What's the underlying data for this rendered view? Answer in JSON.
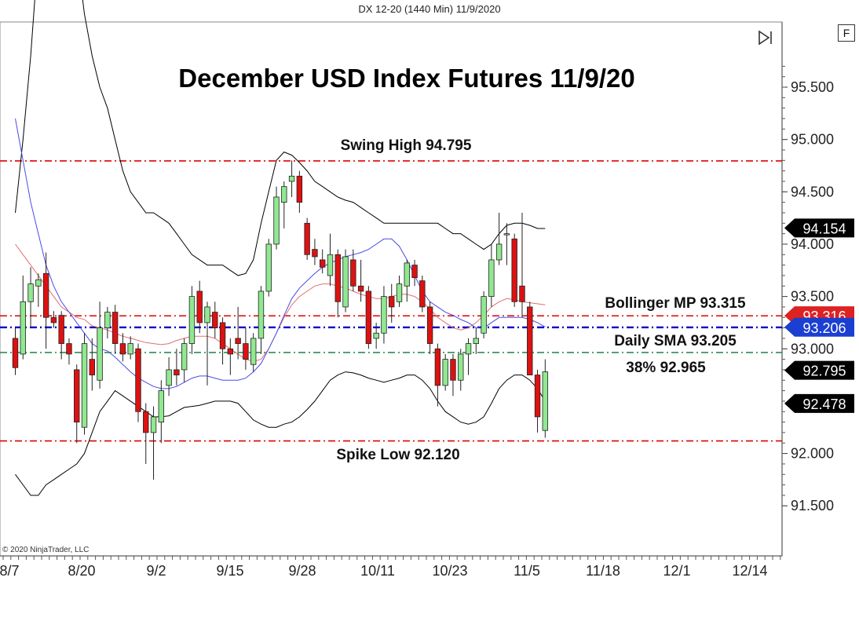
{
  "header": {
    "instrument_label": "DX 12-20 (1440 Min)  11/9/2020"
  },
  "chart_data": {
    "type": "candlestick",
    "title": "December USD Index Futures 11/9/20",
    "x_tick_labels": [
      "8/7",
      "8/20",
      "9/2",
      "9/15",
      "9/28",
      "10/11",
      "10/23",
      "11/5",
      "11/18",
      "12/1",
      "12/14"
    ],
    "y_tick_labels": [
      "95.500",
      "95.000",
      "94.500",
      "94.000",
      "93.500",
      "93.000",
      "92.000",
      "91.500"
    ],
    "ylim": [
      91.2,
      95.8
    ],
    "grid": false,
    "candles": [
      {
        "o": 93.1,
        "h": 93.2,
        "l": 92.75,
        "c": 92.82
      },
      {
        "o": 92.95,
        "h": 93.7,
        "l": 92.9,
        "c": 93.45
      },
      {
        "o": 93.45,
        "h": 93.78,
        "l": 93.2,
        "c": 93.62
      },
      {
        "o": 93.6,
        "h": 93.72,
        "l": 93.4,
        "c": 93.66
      },
      {
        "o": 93.72,
        "h": 93.92,
        "l": 93.0,
        "c": 93.3
      },
      {
        "o": 93.3,
        "h": 93.36,
        "l": 93.2,
        "c": 93.25
      },
      {
        "o": 93.32,
        "h": 93.36,
        "l": 92.9,
        "c": 93.05
      },
      {
        "o": 93.05,
        "h": 93.1,
        "l": 92.85,
        "c": 92.95
      },
      {
        "o": 92.8,
        "h": 92.85,
        "l": 92.1,
        "c": 92.3
      },
      {
        "o": 92.25,
        "h": 93.15,
        "l": 92.18,
        "c": 93.05
      },
      {
        "o": 92.9,
        "h": 93.1,
        "l": 92.6,
        "c": 92.75
      },
      {
        "o": 92.7,
        "h": 93.45,
        "l": 92.62,
        "c": 93.2
      },
      {
        "o": 93.2,
        "h": 93.4,
        "l": 93.1,
        "c": 93.35
      },
      {
        "o": 93.35,
        "h": 93.42,
        "l": 92.95,
        "c": 93.05
      },
      {
        "o": 93.05,
        "h": 93.15,
        "l": 92.88,
        "c": 92.95
      },
      {
        "o": 92.95,
        "h": 93.12,
        "l": 92.9,
        "c": 93.05
      },
      {
        "o": 93.0,
        "h": 93.05,
        "l": 92.3,
        "c": 92.4
      },
      {
        "o": 92.4,
        "h": 92.48,
        "l": 91.9,
        "c": 92.2
      },
      {
        "o": 92.2,
        "h": 92.45,
        "l": 91.75,
        "c": 92.35
      },
      {
        "o": 92.3,
        "h": 92.7,
        "l": 92.1,
        "c": 92.6
      },
      {
        "o": 92.65,
        "h": 92.92,
        "l": 92.55,
        "c": 92.8
      },
      {
        "o": 92.8,
        "h": 93.0,
        "l": 92.65,
        "c": 92.75
      },
      {
        "o": 92.8,
        "h": 93.1,
        "l": 92.68,
        "c": 93.05
      },
      {
        "o": 93.05,
        "h": 93.6,
        "l": 92.95,
        "c": 93.5
      },
      {
        "o": 93.55,
        "h": 93.65,
        "l": 93.15,
        "c": 93.25
      },
      {
        "o": 93.25,
        "h": 93.45,
        "l": 92.65,
        "c": 93.4
      },
      {
        "o": 93.35,
        "h": 93.45,
        "l": 93.1,
        "c": 93.2
      },
      {
        "o": 93.25,
        "h": 93.3,
        "l": 92.85,
        "c": 93.0
      },
      {
        "o": 93.0,
        "h": 93.1,
        "l": 92.75,
        "c": 92.95
      },
      {
        "o": 93.1,
        "h": 93.4,
        "l": 92.9,
        "c": 93.05
      },
      {
        "o": 93.05,
        "h": 93.2,
        "l": 92.8,
        "c": 92.9
      },
      {
        "o": 92.85,
        "h": 93.15,
        "l": 92.78,
        "c": 93.1
      },
      {
        "o": 93.1,
        "h": 93.6,
        "l": 92.95,
        "c": 93.55
      },
      {
        "o": 93.55,
        "h": 94.05,
        "l": 93.5,
        "c": 94.0
      },
      {
        "o": 94.0,
        "h": 94.55,
        "l": 93.95,
        "c": 94.45
      },
      {
        "o": 94.4,
        "h": 94.6,
        "l": 94.15,
        "c": 94.55
      },
      {
        "o": 94.6,
        "h": 94.8,
        "l": 94.45,
        "c": 94.65
      },
      {
        "o": 94.65,
        "h": 94.7,
        "l": 94.3,
        "c": 94.4
      },
      {
        "o": 94.2,
        "h": 94.25,
        "l": 93.85,
        "c": 93.9
      },
      {
        "o": 93.95,
        "h": 94.05,
        "l": 93.8,
        "c": 93.88
      },
      {
        "o": 93.85,
        "h": 93.95,
        "l": 93.72,
        "c": 93.78
      },
      {
        "o": 93.7,
        "h": 94.1,
        "l": 93.6,
        "c": 93.9
      },
      {
        "o": 93.9,
        "h": 93.95,
        "l": 93.3,
        "c": 93.45
      },
      {
        "o": 93.4,
        "h": 93.95,
        "l": 93.35,
        "c": 93.88
      },
      {
        "o": 93.85,
        "h": 93.95,
        "l": 93.55,
        "c": 93.6
      },
      {
        "o": 93.6,
        "h": 93.85,
        "l": 93.45,
        "c": 93.55
      },
      {
        "o": 93.55,
        "h": 93.6,
        "l": 93.0,
        "c": 93.05
      },
      {
        "o": 93.1,
        "h": 93.25,
        "l": 93.0,
        "c": 93.15
      },
      {
        "o": 93.15,
        "h": 93.6,
        "l": 93.05,
        "c": 93.5
      },
      {
        "o": 93.5,
        "h": 93.62,
        "l": 93.25,
        "c": 93.4
      },
      {
        "o": 93.45,
        "h": 93.7,
        "l": 93.4,
        "c": 93.62
      },
      {
        "o": 93.6,
        "h": 93.85,
        "l": 93.45,
        "c": 93.82
      },
      {
        "o": 93.8,
        "h": 93.85,
        "l": 93.6,
        "c": 93.68
      },
      {
        "o": 93.65,
        "h": 93.7,
        "l": 93.35,
        "c": 93.4
      },
      {
        "o": 93.4,
        "h": 93.45,
        "l": 92.95,
        "c": 93.05
      },
      {
        "o": 93.0,
        "h": 93.05,
        "l": 92.45,
        "c": 92.65
      },
      {
        "o": 92.65,
        "h": 92.95,
        "l": 92.6,
        "c": 92.9
      },
      {
        "o": 92.9,
        "h": 92.95,
        "l": 92.55,
        "c": 92.7
      },
      {
        "o": 92.7,
        "h": 93.0,
        "l": 92.6,
        "c": 92.95
      },
      {
        "o": 92.95,
        "h": 93.1,
        "l": 92.75,
        "c": 93.05
      },
      {
        "o": 93.05,
        "h": 93.2,
        "l": 92.95,
        "c": 93.1
      },
      {
        "o": 93.15,
        "h": 93.55,
        "l": 93.1,
        "c": 93.5
      },
      {
        "o": 93.5,
        "h": 94.0,
        "l": 93.4,
        "c": 93.85
      },
      {
        "o": 93.85,
        "h": 94.3,
        "l": 93.8,
        "c": 94.0
      },
      {
        "o": 94.1,
        "h": 94.2,
        "l": 93.8,
        "c": 94.1
      },
      {
        "o": 94.05,
        "h": 94.1,
        "l": 93.4,
        "c": 93.45
      },
      {
        "o": 93.6,
        "h": 94.3,
        "l": 93.3,
        "c": 93.45
      },
      {
        "o": 93.4,
        "h": 93.45,
        "l": 92.75,
        "c": 92.75
      },
      {
        "o": 92.75,
        "h": 92.8,
        "l": 92.2,
        "c": 92.35
      },
      {
        "o": 92.22,
        "h": 92.9,
        "l": 92.15,
        "c": 92.78
      }
    ],
    "bollinger_upper": [
      94.3,
      95.0,
      95.8,
      96.8,
      97.8,
      98.2,
      97.6,
      97.0,
      96.8,
      96.2,
      95.8,
      95.5,
      95.3,
      95.0,
      94.7,
      94.5,
      94.4,
      94.3,
      94.3,
      94.25,
      94.2,
      94.1,
      94.0,
      93.9,
      93.85,
      93.8,
      93.8,
      93.8,
      93.75,
      93.7,
      93.72,
      93.85,
      94.2,
      94.5,
      94.8,
      94.88,
      94.85,
      94.78,
      94.7,
      94.6,
      94.55,
      94.5,
      94.45,
      94.42,
      94.4,
      94.35,
      94.3,
      94.25,
      94.2,
      94.2,
      94.2,
      94.2,
      94.2,
      94.2,
      94.2,
      94.2,
      94.15,
      94.1,
      94.1,
      94.05,
      94.0,
      93.95,
      94.0,
      94.1,
      94.18,
      94.2,
      94.2,
      94.18,
      94.15,
      94.15
    ],
    "bollinger_middle": [
      94.0,
      93.9,
      93.8,
      93.7,
      93.6,
      93.5,
      93.4,
      93.35,
      93.3,
      93.28,
      93.22,
      93.2,
      93.18,
      93.15,
      93.12,
      93.1,
      93.08,
      93.06,
      93.05,
      93.04,
      93.05,
      93.08,
      93.1,
      93.12,
      93.12,
      93.12,
      93.1,
      93.05,
      93.0,
      92.95,
      92.9,
      92.88,
      92.9,
      93.0,
      93.15,
      93.3,
      93.42,
      93.5,
      93.55,
      93.6,
      93.62,
      93.62,
      93.6,
      93.58,
      93.55,
      93.52,
      93.5,
      93.48,
      93.48,
      93.5,
      93.52,
      93.52,
      93.5,
      93.45,
      93.38,
      93.3,
      93.25,
      93.2,
      93.18,
      93.2,
      93.25,
      93.32,
      93.4,
      93.45,
      93.48,
      93.47,
      93.45,
      93.44,
      93.43,
      93.42
    ],
    "bollinger_lower": [
      91.8,
      91.7,
      91.6,
      91.6,
      91.7,
      91.75,
      91.8,
      91.85,
      91.9,
      92.0,
      92.2,
      92.4,
      92.5,
      92.6,
      92.55,
      92.5,
      92.45,
      92.4,
      92.35,
      92.35,
      92.36,
      92.4,
      92.44,
      92.45,
      92.46,
      92.48,
      92.5,
      92.5,
      92.5,
      92.48,
      92.4,
      92.32,
      92.28,
      92.25,
      92.25,
      92.28,
      92.3,
      92.35,
      92.42,
      92.5,
      92.6,
      92.7,
      92.75,
      92.78,
      92.77,
      92.75,
      92.72,
      92.7,
      92.68,
      92.7,
      92.72,
      92.75,
      92.75,
      92.7,
      92.62,
      92.5,
      92.4,
      92.35,
      92.3,
      92.28,
      92.3,
      92.35,
      92.48,
      92.62,
      92.7,
      92.75,
      92.75,
      92.7,
      92.62,
      92.5
    ],
    "daily_sma": [
      95.2,
      94.8,
      94.4,
      94.1,
      93.8,
      93.6,
      93.45,
      93.35,
      93.25,
      93.15,
      93.05,
      93.0,
      92.98,
      92.92,
      92.85,
      92.78,
      92.72,
      92.68,
      92.64,
      92.62,
      92.62,
      92.64,
      92.68,
      92.72,
      92.74,
      92.74,
      92.72,
      92.7,
      92.7,
      92.7,
      92.72,
      92.78,
      92.86,
      93.0,
      93.15,
      93.32,
      93.48,
      93.58,
      93.65,
      93.72,
      93.78,
      93.82,
      93.85,
      93.88,
      93.9,
      93.92,
      93.95,
      94.0,
      94.05,
      94.05,
      93.98,
      93.85,
      93.7,
      93.55,
      93.45,
      93.4,
      93.35,
      93.32,
      93.28,
      93.25,
      93.2,
      93.2,
      93.25,
      93.3,
      93.3,
      93.3,
      93.3,
      93.28,
      93.25,
      93.21
    ],
    "levels": [
      {
        "label": "Swing High 94.795",
        "value": 94.795,
        "color": "#e00000"
      },
      {
        "label": "Bollinger MP 93.315",
        "value": 93.315,
        "color": "#e00000"
      },
      {
        "label": "Daily SMA 93.205",
        "value": 93.205,
        "color": "#0000cc"
      },
      {
        "label": "38% 92.965",
        "value": 92.965,
        "color": "#2e8b57"
      },
      {
        "label": "Spike Low 92.120",
        "value": 92.12,
        "color": "#e00000"
      }
    ],
    "price_tags": [
      {
        "text": "94.154",
        "value": 94.154,
        "bg": "#000000",
        "fg": "#ffffff"
      },
      {
        "text": "93.316",
        "value": 93.316,
        "bg": "#dd2222",
        "fg": "#ffffff"
      },
      {
        "text": "93.206",
        "value": 93.206,
        "bg": "#1a3fd1",
        "fg": "#ffffff"
      },
      {
        "text": "92.795",
        "value": 92.795,
        "bg": "#000000",
        "fg": "#ffffff"
      },
      {
        "text": "92.478",
        "value": 92.478,
        "bg": "#000000",
        "fg": "#ffffff"
      }
    ],
    "colors": {
      "up_candle": "#90e890",
      "down_candle": "#dd1111",
      "bollinger_band": "#000000",
      "bollinger_middle": "#e07070",
      "daily_sma": "#4a4ae8"
    }
  },
  "controls": {
    "f_button": "F",
    "play_icon": "play-to-end-icon"
  },
  "footer": {
    "copyright": "© 2020 NinjaTrader, LLC"
  }
}
